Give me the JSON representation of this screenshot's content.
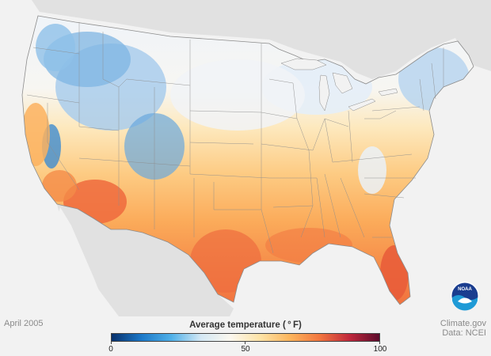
{
  "map": {
    "date": "April 2005",
    "credit_line1": "Climate.gov",
    "credit_line2": "Data: NCEI",
    "logo_text": "NOAA"
  },
  "legend": {
    "title": "Average temperature ( ° F)",
    "tick_min": "0",
    "tick_mid": "50",
    "tick_max": "100",
    "min": 0,
    "max": 100,
    "stops": [
      "#08306b",
      "#1b78c8",
      "#4fb0e8",
      "#d4e8f4",
      "#fbf7ee",
      "#fde3a6",
      "#fcb55d",
      "#f2763f",
      "#c0283c",
      "#5c0b2c"
    ]
  },
  "colors": {
    "land_background": "#e1e1e1",
    "water": "#f2f2f2",
    "state_lines": "#8c8c8c"
  }
}
